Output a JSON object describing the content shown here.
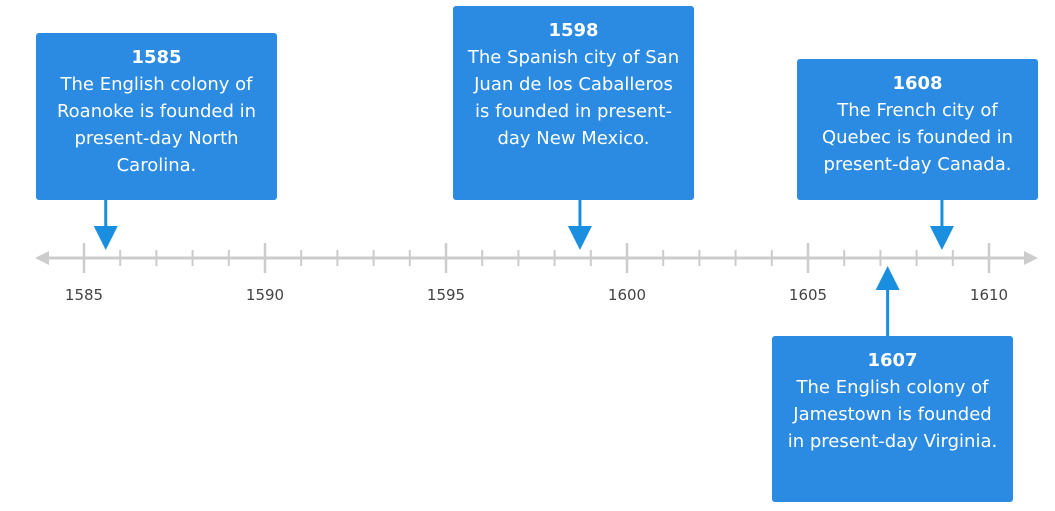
{
  "colors": {
    "card": "#2b8ae2",
    "pointer": "#1a8fe0",
    "axis": "#cccccc",
    "tick_text": "#444444"
  },
  "axis": {
    "start": 1585,
    "end": 1610,
    "major_step": 5,
    "minor_step": 1,
    "labels": [
      "1585",
      "1590",
      "1595",
      "1600",
      "1605",
      "1610"
    ]
  },
  "events": [
    {
      "year": "1585",
      "description": "The English colony of Roanoke is founded in present-day North Carolina.",
      "date": 1585.6
    },
    {
      "year": "1598",
      "description": "The Spanish city of San Juan de los Caballeros is founded in present-day New Mexico.",
      "date": 1598.7
    },
    {
      "year": "1608",
      "description": "The French city of Quebec is founded in present-day Canada.",
      "date": 1608.7
    },
    {
      "year": "1607",
      "description": "The English colony of Jamestown is founded in present-day Virginia.",
      "date": 1607.2
    }
  ]
}
